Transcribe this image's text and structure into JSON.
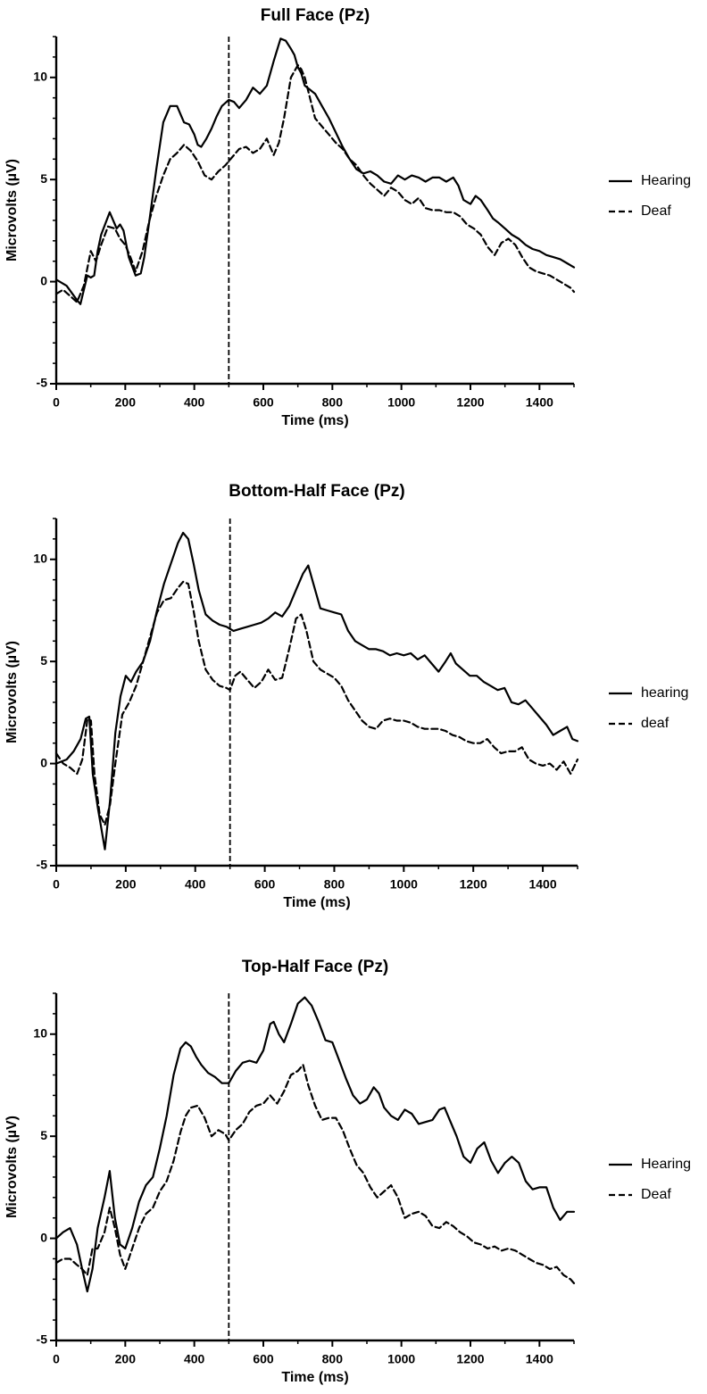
{
  "chart_data": [
    {
      "type": "line",
      "title": "Full Face (Pz)",
      "xlabel": "Time (ms)",
      "ylabel": "Microvolts (µV)",
      "xlim": [
        0,
        1500
      ],
      "ylim": [
        -5,
        12
      ],
      "xticks": [
        "0",
        "200",
        "400",
        "600",
        "800",
        "1000",
        "1200",
        "1400"
      ],
      "yticks": [
        "-5",
        "0",
        "5",
        "10"
      ],
      "marker_x": 500,
      "legend_position": "right",
      "series": [
        {
          "name": "Hearing",
          "style": "solid",
          "x": [
            0,
            30,
            60,
            70,
            90,
            100,
            110,
            120,
            130,
            155,
            175,
            185,
            195,
            210,
            230,
            245,
            255,
            270,
            290,
            310,
            330,
            350,
            370,
            385,
            400,
            410,
            420,
            435,
            450,
            465,
            480,
            500,
            515,
            530,
            550,
            570,
            590,
            610,
            630,
            650,
            665,
            680,
            690,
            700,
            710,
            720,
            735,
            750,
            770,
            790,
            810,
            830,
            850,
            870,
            890,
            910,
            930,
            950,
            970,
            990,
            1010,
            1030,
            1050,
            1070,
            1090,
            1110,
            1130,
            1150,
            1165,
            1180,
            1200,
            1215,
            1230,
            1250,
            1265,
            1280,
            1300,
            1320,
            1340,
            1360,
            1380,
            1400,
            1420,
            1440,
            1460,
            1480,
            1500
          ],
          "y": [
            0.1,
            -0.2,
            -0.9,
            -1.1,
            0.3,
            0.2,
            0.3,
            1.5,
            2.3,
            3.4,
            2.6,
            2.8,
            2.5,
            1.2,
            0.3,
            0.4,
            1.2,
            3.0,
            5.5,
            7.8,
            8.6,
            8.6,
            7.8,
            7.7,
            7.2,
            6.7,
            6.6,
            7.0,
            7.5,
            8.1,
            8.6,
            8.9,
            8.8,
            8.5,
            8.9,
            9.5,
            9.2,
            9.6,
            10.8,
            11.9,
            11.8,
            11.4,
            11.1,
            10.5,
            10.2,
            9.6,
            9.4,
            9.2,
            8.6,
            8.0,
            7.3,
            6.6,
            6.0,
            5.5,
            5.3,
            5.4,
            5.2,
            4.9,
            4.8,
            5.2,
            5.0,
            5.2,
            5.1,
            4.9,
            5.1,
            5.1,
            4.9,
            5.1,
            4.7,
            4.0,
            3.8,
            4.2,
            4.0,
            3.5,
            3.1,
            2.9,
            2.6,
            2.3,
            2.1,
            1.8,
            1.6,
            1.5,
            1.3,
            1.2,
            1.1,
            0.9,
            0.7
          ]
        },
        {
          "name": "Deaf",
          "style": "dashed",
          "x": [
            0,
            20,
            40,
            60,
            80,
            100,
            115,
            130,
            150,
            170,
            185,
            200,
            215,
            230,
            250,
            270,
            290,
            310,
            330,
            350,
            370,
            390,
            410,
            430,
            450,
            470,
            490,
            510,
            530,
            550,
            570,
            590,
            610,
            620,
            630,
            645,
            660,
            680,
            700,
            710,
            720,
            735,
            750,
            770,
            790,
            810,
            830,
            850,
            870,
            890,
            910,
            930,
            950,
            970,
            990,
            1010,
            1030,
            1050,
            1070,
            1090,
            1110,
            1130,
            1150,
            1170,
            1190,
            1210,
            1230,
            1250,
            1270,
            1290,
            1310,
            1330,
            1350,
            1370,
            1390,
            1410,
            1430,
            1450,
            1470,
            1490,
            1500
          ],
          "y": [
            -0.6,
            -0.4,
            -0.7,
            -1.0,
            -0.2,
            1.5,
            1.0,
            1.8,
            2.7,
            2.6,
            2.1,
            1.8,
            1.2,
            0.5,
            1.5,
            3.0,
            4.2,
            5.2,
            6.0,
            6.3,
            6.7,
            6.4,
            5.9,
            5.2,
            5.0,
            5.4,
            5.7,
            6.1,
            6.5,
            6.6,
            6.3,
            6.5,
            7.0,
            6.6,
            6.2,
            6.8,
            8.0,
            10.0,
            10.6,
            10.4,
            10.0,
            9.0,
            8.0,
            7.6,
            7.2,
            6.8,
            6.5,
            6.0,
            5.7,
            5.2,
            4.8,
            4.5,
            4.2,
            4.6,
            4.4,
            4.0,
            3.8,
            4.1,
            3.6,
            3.5,
            3.5,
            3.4,
            3.4,
            3.2,
            2.8,
            2.6,
            2.3,
            1.7,
            1.3,
            1.9,
            2.1,
            1.8,
            1.2,
            0.7,
            0.5,
            0.4,
            0.3,
            0.1,
            -0.1,
            -0.3,
            -0.5
          ]
        }
      ]
    },
    {
      "type": "line",
      "title": "Bottom-Half Face (Pz)",
      "xlabel": "Time (ms)",
      "ylabel": "Microvolts (µV)",
      "xlim": [
        0,
        1500
      ],
      "ylim": [
        -5,
        12
      ],
      "xticks": [
        "0",
        "200",
        "400",
        "600",
        "800",
        "1000",
        "1200",
        "1400"
      ],
      "yticks": [
        "-5",
        "0",
        "5",
        "10"
      ],
      "marker_x": 500,
      "legend_position": "right",
      "series": [
        {
          "name": "hearing",
          "style": "solid",
          "x": [
            0,
            30,
            50,
            70,
            85,
            95,
            105,
            120,
            140,
            155,
            170,
            185,
            200,
            215,
            230,
            250,
            270,
            290,
            310,
            330,
            350,
            365,
            380,
            395,
            410,
            430,
            450,
            470,
            490,
            510,
            530,
            550,
            570,
            590,
            610,
            630,
            650,
            670,
            690,
            710,
            725,
            740,
            760,
            780,
            800,
            820,
            840,
            860,
            880,
            900,
            920,
            940,
            960,
            980,
            1000,
            1020,
            1040,
            1060,
            1080,
            1100,
            1120,
            1135,
            1150,
            1170,
            1190,
            1210,
            1230,
            1250,
            1270,
            1290,
            1310,
            1330,
            1350,
            1370,
            1390,
            1410,
            1430,
            1450,
            1470,
            1485,
            1500
          ],
          "y": [
            0.0,
            0.2,
            0.6,
            1.2,
            2.2,
            2.3,
            -0.5,
            -2.2,
            -4.2,
            -1.8,
            1.5,
            3.3,
            4.3,
            4.0,
            4.5,
            5.0,
            6.0,
            7.5,
            8.8,
            9.8,
            10.8,
            11.3,
            11.0,
            9.8,
            8.5,
            7.3,
            7.0,
            6.8,
            6.7,
            6.5,
            6.6,
            6.7,
            6.8,
            6.9,
            7.1,
            7.4,
            7.2,
            7.7,
            8.5,
            9.3,
            9.7,
            8.8,
            7.6,
            7.5,
            7.4,
            7.3,
            6.5,
            6.0,
            5.8,
            5.6,
            5.6,
            5.5,
            5.3,
            5.4,
            5.3,
            5.4,
            5.1,
            5.3,
            4.9,
            4.5,
            5.0,
            5.4,
            4.9,
            4.6,
            4.3,
            4.3,
            4.0,
            3.8,
            3.6,
            3.7,
            3.0,
            2.9,
            3.1,
            2.7,
            2.3,
            1.9,
            1.4,
            1.6,
            1.8,
            1.2,
            1.1
          ]
        },
        {
          "name": "deaf",
          "style": "dashed",
          "x": [
            0,
            20,
            40,
            60,
            75,
            90,
            100,
            110,
            125,
            140,
            155,
            170,
            190,
            210,
            230,
            250,
            270,
            290,
            310,
            330,
            350,
            365,
            380,
            395,
            410,
            430,
            450,
            470,
            490,
            500,
            515,
            530,
            550,
            570,
            590,
            610,
            630,
            650,
            670,
            690,
            705,
            720,
            740,
            760,
            780,
            800,
            820,
            840,
            860,
            880,
            900,
            920,
            940,
            960,
            980,
            1000,
            1020,
            1040,
            1060,
            1080,
            1100,
            1120,
            1140,
            1160,
            1180,
            1200,
            1220,
            1240,
            1260,
            1280,
            1300,
            1320,
            1340,
            1360,
            1380,
            1400,
            1420,
            1440,
            1460,
            1480,
            1500
          ],
          "y": [
            0.5,
            0.0,
            -0.2,
            -0.5,
            0.2,
            2.2,
            2.1,
            -0.5,
            -2.5,
            -3.0,
            -2.0,
            0.0,
            2.4,
            3.0,
            3.8,
            5.0,
            6.2,
            7.4,
            8.0,
            8.1,
            8.6,
            8.9,
            8.8,
            7.5,
            6.0,
            4.6,
            4.1,
            3.8,
            3.7,
            3.6,
            4.3,
            4.5,
            4.1,
            3.7,
            4.0,
            4.6,
            4.1,
            4.2,
            5.6,
            7.1,
            7.3,
            6.5,
            5.0,
            4.6,
            4.4,
            4.2,
            3.8,
            3.1,
            2.6,
            2.1,
            1.8,
            1.7,
            2.1,
            2.2,
            2.1,
            2.1,
            2.0,
            1.8,
            1.7,
            1.7,
            1.7,
            1.6,
            1.4,
            1.3,
            1.1,
            1.0,
            1.0,
            1.2,
            0.8,
            0.5,
            0.6,
            0.6,
            0.8,
            0.2,
            0.0,
            -0.1,
            0.0,
            -0.3,
            0.1,
            -0.5,
            0.2
          ]
        }
      ]
    },
    {
      "type": "line",
      "title": "Top-Half Face (Pz)",
      "xlabel": "Time (ms)",
      "ylabel": "Microvolts (µV)",
      "xlim": [
        0,
        1500
      ],
      "ylim": [
        -5,
        12
      ],
      "xticks": [
        "0",
        "200",
        "400",
        "600",
        "800",
        "1000",
        "1200",
        "1400"
      ],
      "yticks": [
        "-5",
        "0",
        "5",
        "10"
      ],
      "marker_x": 500,
      "legend_position": "right",
      "series": [
        {
          "name": "Hearing",
          "style": "solid",
          "x": [
            0,
            20,
            40,
            60,
            75,
            90,
            105,
            120,
            140,
            155,
            170,
            185,
            200,
            220,
            240,
            260,
            280,
            300,
            320,
            340,
            360,
            375,
            390,
            405,
            420,
            440,
            460,
            480,
            500,
            520,
            540,
            560,
            580,
            600,
            620,
            630,
            645,
            660,
            680,
            700,
            720,
            740,
            760,
            780,
            800,
            820,
            840,
            860,
            880,
            900,
            920,
            935,
            950,
            970,
            990,
            1010,
            1030,
            1050,
            1070,
            1090,
            1110,
            1125,
            1140,
            1160,
            1180,
            1200,
            1220,
            1240,
            1260,
            1280,
            1300,
            1320,
            1340,
            1360,
            1380,
            1400,
            1420,
            1440,
            1460,
            1480,
            1500
          ],
          "y": [
            0.0,
            0.3,
            0.5,
            -0.3,
            -1.5,
            -2.6,
            -1.5,
            0.5,
            2.0,
            3.3,
            1.0,
            -0.3,
            -0.5,
            0.5,
            1.8,
            2.6,
            3.0,
            4.4,
            6.0,
            8.0,
            9.3,
            9.6,
            9.4,
            8.9,
            8.5,
            8.1,
            7.9,
            7.6,
            7.6,
            8.2,
            8.6,
            8.7,
            8.6,
            9.2,
            10.5,
            10.6,
            10.0,
            9.6,
            10.5,
            11.5,
            11.8,
            11.4,
            10.6,
            9.7,
            9.6,
            8.7,
            7.8,
            7.0,
            6.6,
            6.8,
            7.4,
            7.1,
            6.4,
            6.0,
            5.8,
            6.3,
            6.1,
            5.6,
            5.7,
            5.8,
            6.3,
            6.4,
            5.8,
            5.0,
            4.0,
            3.7,
            4.4,
            4.7,
            3.8,
            3.2,
            3.7,
            4.0,
            3.7,
            2.8,
            2.4,
            2.5,
            2.5,
            1.5,
            0.9,
            1.3,
            1.3
          ]
        },
        {
          "name": "Deaf",
          "style": "dashed",
          "x": [
            0,
            20,
            40,
            60,
            75,
            90,
            105,
            120,
            140,
            155,
            170,
            185,
            200,
            220,
            240,
            260,
            280,
            300,
            320,
            340,
            360,
            375,
            390,
            410,
            430,
            450,
            470,
            490,
            500,
            520,
            540,
            560,
            580,
            600,
            620,
            640,
            660,
            680,
            700,
            715,
            730,
            750,
            770,
            790,
            810,
            830,
            850,
            870,
            890,
            910,
            930,
            950,
            970,
            990,
            1010,
            1030,
            1050,
            1070,
            1090,
            1110,
            1130,
            1150,
            1170,
            1190,
            1210,
            1230,
            1250,
            1270,
            1290,
            1310,
            1330,
            1350,
            1370,
            1390,
            1410,
            1430,
            1450,
            1470,
            1490,
            1500
          ],
          "y": [
            -1.2,
            -1.0,
            -1.0,
            -1.3,
            -1.5,
            -1.8,
            -0.5,
            -0.5,
            0.3,
            1.5,
            0.5,
            -0.8,
            -1.5,
            -0.5,
            0.5,
            1.2,
            1.5,
            2.3,
            2.8,
            3.8,
            5.2,
            6.0,
            6.4,
            6.5,
            5.9,
            5.0,
            5.3,
            5.1,
            4.8,
            5.3,
            5.6,
            6.2,
            6.5,
            6.6,
            7.0,
            6.6,
            7.2,
            8.0,
            8.2,
            8.5,
            7.5,
            6.5,
            5.8,
            5.9,
            5.9,
            5.3,
            4.4,
            3.6,
            3.2,
            2.5,
            2.0,
            2.3,
            2.6,
            2.0,
            1.0,
            1.2,
            1.3,
            1.1,
            0.6,
            0.5,
            0.8,
            0.6,
            0.3,
            0.1,
            -0.2,
            -0.3,
            -0.5,
            -0.4,
            -0.6,
            -0.5,
            -0.6,
            -0.8,
            -1.0,
            -1.2,
            -1.3,
            -1.5,
            -1.4,
            -1.8,
            -2.0,
            -2.2
          ]
        }
      ]
    }
  ]
}
